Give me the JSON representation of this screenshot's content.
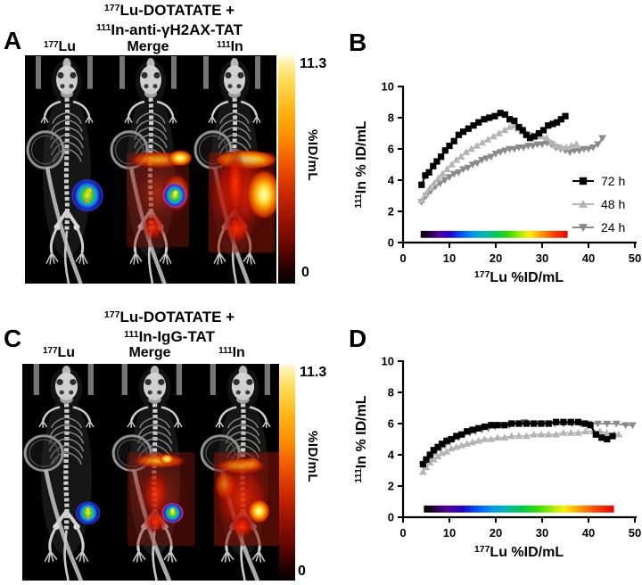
{
  "figure": {
    "panels": {
      "A": {
        "letter": "A",
        "title_line1_sup": "177",
        "title_line1": "Lu-DOTATATE +",
        "title_line2_sup": "111",
        "title_line2": "In-anti-γH2AX-TAT",
        "columns": [
          {
            "sup": "177",
            "label": "Lu"
          },
          {
            "sup": "",
            "label": "Merge"
          },
          {
            "sup": "111",
            "label": "In"
          }
        ],
        "colorbar": {
          "max": "11.3",
          "unit": "%ID/mL",
          "min": "0"
        }
      },
      "B": {
        "letter": "B"
      },
      "C": {
        "letter": "C",
        "title_line1_sup": "177",
        "title_line1": "Lu-DOTATATE +",
        "title_line2_sup": "111",
        "title_line2": "In-IgG-TAT",
        "columns": [
          {
            "sup": "177",
            "label": "Lu"
          },
          {
            "sup": "",
            "label": "Merge"
          },
          {
            "sup": "111",
            "label": "In"
          }
        ],
        "colorbar": {
          "max": "11.3",
          "unit": "%ID/mL",
          "min": "0"
        }
      },
      "D": {
        "letter": "D"
      }
    }
  },
  "chart_data": [
    {
      "id": "chartB",
      "panel": "B",
      "type": "line",
      "xlabel": {
        "sup": "177",
        "text": "Lu %ID/mL"
      },
      "ylabel": {
        "sup": "111",
        "text": "In % ID/mL"
      },
      "xlim": [
        0,
        50
      ],
      "ylim": [
        0,
        10
      ],
      "xticks": [
        0,
        10,
        20,
        30,
        40,
        50
      ],
      "yticks": [
        0,
        2,
        4,
        6,
        8,
        10
      ],
      "grid": false,
      "legend": {
        "show": true,
        "position": "right-center"
      },
      "scale_bar": {
        "x0": 3.8,
        "x1": 35.5,
        "y0": 0.3,
        "y1": 0.75,
        "style": "spectrum"
      },
      "series": [
        {
          "name": "72 h",
          "marker": "square",
          "color": "#000000",
          "points": [
            [
              4,
              3.7
            ],
            [
              4.8,
              4.3
            ],
            [
              5.6,
              4.5
            ],
            [
              6.5,
              4.9
            ],
            [
              7.3,
              5.2
            ],
            [
              8.2,
              5.5
            ],
            [
              9.1,
              5.9
            ],
            [
              10,
              6.2
            ],
            [
              11,
              6.5
            ],
            [
              12,
              6.9
            ],
            [
              13,
              7.1
            ],
            [
              14.1,
              7.3
            ],
            [
              15.2,
              7.5
            ],
            [
              16.3,
              7.7
            ],
            [
              17.5,
              7.9
            ],
            [
              18.6,
              8.0
            ],
            [
              19.8,
              8.1
            ],
            [
              21,
              8.3
            ],
            [
              22,
              8.2
            ],
            [
              23,
              7.9
            ],
            [
              24,
              7.8
            ],
            [
              25,
              7.4
            ],
            [
              25.8,
              7.2
            ],
            [
              26.6,
              6.9
            ],
            [
              27.4,
              6.7
            ],
            [
              28.3,
              6.8
            ],
            [
              29.3,
              7.0
            ],
            [
              30.3,
              7.2
            ],
            [
              31.3,
              7.5
            ],
            [
              32.3,
              7.6
            ],
            [
              33.2,
              7.7
            ],
            [
              34.1,
              7.9
            ],
            [
              35,
              8.1
            ]
          ]
        },
        {
          "name": "48 h",
          "marker": "triangle-up",
          "color": "#b5b5b5",
          "points": [
            [
              4,
              2.7
            ],
            [
              4.9,
              3.1
            ],
            [
              5.8,
              3.5
            ],
            [
              6.7,
              3.8
            ],
            [
              7.6,
              4.1
            ],
            [
              8.5,
              4.4
            ],
            [
              9.5,
              4.7
            ],
            [
              10.5,
              5.0
            ],
            [
              11.5,
              5.3
            ],
            [
              12.5,
              5.5
            ],
            [
              13.6,
              5.8
            ],
            [
              14.7,
              6.0
            ],
            [
              15.9,
              6.2
            ],
            [
              17.1,
              6.4
            ],
            [
              18.3,
              6.6
            ],
            [
              19.5,
              6.8
            ],
            [
              20.7,
              7.0
            ],
            [
              21.9,
              7.2
            ],
            [
              23,
              7.4
            ],
            [
              23.9,
              7.5
            ],
            [
              24.8,
              7.3
            ],
            [
              25.7,
              7.1
            ],
            [
              26.6,
              7.0
            ],
            [
              27.6,
              6.9
            ],
            [
              28.7,
              6.8
            ],
            [
              29.9,
              6.8
            ],
            [
              31,
              6.7
            ],
            [
              32,
              6.4
            ],
            [
              33,
              6.2
            ],
            [
              34.1,
              6.1
            ],
            [
              35.2,
              6.1
            ],
            [
              36.3,
              6.2
            ],
            [
              37.4,
              6.3
            ]
          ]
        },
        {
          "name": "24 h",
          "marker": "triangle-down",
          "color": "#8a8a8a",
          "points": [
            [
              4,
              2.6
            ],
            [
              5,
              3.0
            ],
            [
              6,
              3.3
            ],
            [
              7,
              3.6
            ],
            [
              8,
              3.8
            ],
            [
              9,
              4.0
            ],
            [
              10,
              4.2
            ],
            [
              11,
              4.4
            ],
            [
              12,
              4.5
            ],
            [
              13,
              4.7
            ],
            [
              14,
              4.8
            ],
            [
              15,
              5.0
            ],
            [
              16,
              5.1
            ],
            [
              17,
              5.3
            ],
            [
              18,
              5.4
            ],
            [
              19,
              5.5
            ],
            [
              20,
              5.7
            ],
            [
              21,
              5.8
            ],
            [
              22,
              5.9
            ],
            [
              23,
              6.0
            ],
            [
              24,
              6.0
            ],
            [
              25,
              6.1
            ],
            [
              26,
              6.1
            ],
            [
              27,
              6.2
            ],
            [
              28,
              6.2
            ],
            [
              29,
              6.3
            ],
            [
              30,
              6.3
            ],
            [
              31,
              6.4
            ],
            [
              32,
              6.3
            ],
            [
              33,
              6.1
            ],
            [
              34,
              6.0
            ],
            [
              35,
              5.9
            ],
            [
              36,
              5.8
            ],
            [
              37,
              5.9
            ],
            [
              38,
              5.9
            ],
            [
              39,
              6.0
            ],
            [
              40,
              6.0
            ],
            [
              41,
              6.1
            ],
            [
              42,
              6.3
            ],
            [
              43,
              6.7
            ]
          ]
        }
      ]
    },
    {
      "id": "chartD",
      "panel": "D",
      "type": "line",
      "xlabel": {
        "sup": "177",
        "text": "Lu %ID/mL"
      },
      "ylabel": {
        "sup": "111",
        "text": "In % ID/mL"
      },
      "xlim": [
        0,
        50
      ],
      "ylim": [
        0,
        10
      ],
      "xticks": [
        0,
        10,
        20,
        30,
        40,
        50
      ],
      "yticks": [
        0,
        2,
        4,
        6,
        8,
        10
      ],
      "grid": false,
      "legend": {
        "show": false
      },
      "scale_bar": {
        "x0": 4.5,
        "x1": 45.5,
        "y0": 0.3,
        "y1": 0.75,
        "style": "spectrum"
      },
      "series": [
        {
          "name": "72 h",
          "marker": "square",
          "color": "#000000",
          "points": [
            [
              4.3,
              3.4
            ],
            [
              5,
              3.7
            ],
            [
              5.8,
              4.0
            ],
            [
              6.6,
              4.3
            ],
            [
              7.5,
              4.5
            ],
            [
              8.4,
              4.7
            ],
            [
              9.4,
              4.9
            ],
            [
              10.4,
              5.0
            ],
            [
              11.5,
              5.2
            ],
            [
              12.6,
              5.3
            ],
            [
              13.8,
              5.5
            ],
            [
              15,
              5.6
            ],
            [
              16.3,
              5.7
            ],
            [
              17.6,
              5.8
            ],
            [
              19,
              5.9
            ],
            [
              20.4,
              5.9
            ],
            [
              21.9,
              5.9
            ],
            [
              23.4,
              6.0
            ],
            [
              25,
              6.0
            ],
            [
              26.6,
              6.0
            ],
            [
              28.2,
              6.0
            ],
            [
              29.8,
              6.0
            ],
            [
              31.4,
              6.0
            ],
            [
              33,
              6.1
            ],
            [
              34.6,
              6.1
            ],
            [
              36.2,
              6.1
            ],
            [
              37.8,
              6.1
            ],
            [
              39.2,
              6.0
            ],
            [
              40.4,
              5.9
            ],
            [
              41.6,
              5.3
            ],
            [
              42.8,
              5.1
            ],
            [
              44,
              5.0
            ],
            [
              45.2,
              5.2
            ]
          ]
        },
        {
          "name": "48 h",
          "marker": "triangle-up",
          "color": "#b5b5b5",
          "points": [
            [
              4.3,
              2.9
            ],
            [
              5,
              3.2
            ],
            [
              5.8,
              3.5
            ],
            [
              6.6,
              3.7
            ],
            [
              7.5,
              3.9
            ],
            [
              8.4,
              4.1
            ],
            [
              9.4,
              4.2
            ],
            [
              10.4,
              4.4
            ],
            [
              11.5,
              4.5
            ],
            [
              12.6,
              4.6
            ],
            [
              13.8,
              4.7
            ],
            [
              15,
              4.8
            ],
            [
              16.3,
              4.9
            ],
            [
              17.6,
              5.0
            ],
            [
              19,
              5.0
            ],
            [
              20.4,
              5.1
            ],
            [
              21.9,
              5.1
            ],
            [
              23.4,
              5.2
            ],
            [
              25,
              5.2
            ],
            [
              26.6,
              5.2
            ],
            [
              28.2,
              5.3
            ],
            [
              29.8,
              5.3
            ],
            [
              31.4,
              5.3
            ],
            [
              33,
              5.3
            ],
            [
              34.6,
              5.4
            ],
            [
              36.2,
              5.4
            ],
            [
              37.8,
              5.4
            ],
            [
              39.4,
              5.5
            ],
            [
              41,
              5.5
            ],
            [
              42.5,
              5.5
            ],
            [
              44,
              5.4
            ],
            [
              45.5,
              5.3
            ],
            [
              46.5,
              5.3
            ]
          ]
        },
        {
          "name": "24 h",
          "marker": "triangle-down",
          "color": "#8a8a8a",
          "points": [
            [
              4.3,
              3.3
            ],
            [
              5.2,
              3.6
            ],
            [
              6.1,
              3.9
            ],
            [
              7,
              4.2
            ],
            [
              8,
              4.4
            ],
            [
              9,
              4.6
            ],
            [
              10,
              4.8
            ],
            [
              11,
              5.0
            ],
            [
              12,
              5.1
            ],
            [
              13.2,
              5.3
            ],
            [
              14.4,
              5.4
            ],
            [
              15.6,
              5.5
            ],
            [
              17,
              5.6
            ],
            [
              18.4,
              5.7
            ],
            [
              19.8,
              5.8
            ],
            [
              21.4,
              5.9
            ],
            [
              23,
              5.9
            ],
            [
              24.6,
              6.0
            ],
            [
              26.2,
              6.1
            ],
            [
              27.8,
              6.0
            ],
            [
              29.4,
              6.0
            ],
            [
              31,
              6.0
            ],
            [
              32.8,
              6.0
            ],
            [
              34.6,
              6.0
            ],
            [
              36.4,
              6.0
            ],
            [
              38.2,
              6.0
            ],
            [
              40,
              6.0
            ],
            [
              42,
              6.0
            ],
            [
              44,
              6.0
            ],
            [
              46,
              6.0
            ],
            [
              48,
              5.9
            ],
            [
              49.5,
              5.9
            ]
          ]
        }
      ]
    }
  ]
}
